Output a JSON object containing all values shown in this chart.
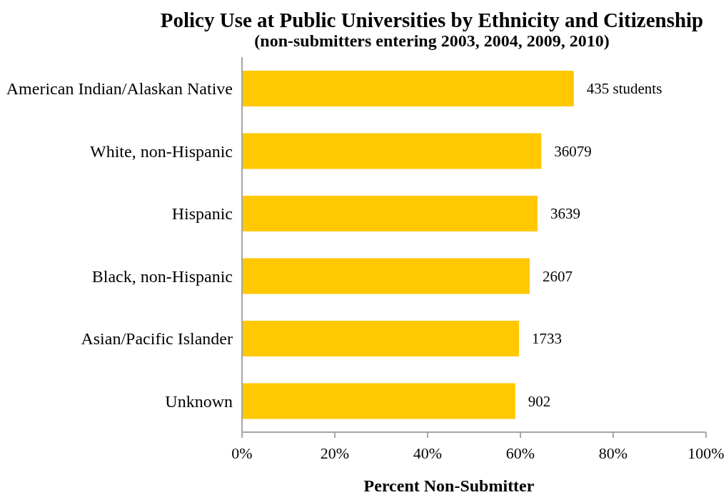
{
  "chart_data": {
    "type": "bar",
    "orientation": "horizontal",
    "title": "Policy Use at Public Universities by Ethnicity and Citizenship",
    "subtitle": "(non-submitters entering 2003, 2004, 2009, 2010)",
    "xlabel": "Percent Non-Submitter",
    "categories": [
      "American Indian/Alaskan Native",
      "White, non-Hispanic",
      "Hispanic",
      "Black, non-Hispanic",
      "Asian/Pacific Islander",
      "Unknown"
    ],
    "values": [
      71.5,
      64.5,
      63.7,
      62.0,
      59.7,
      58.9
    ],
    "annotations": [
      {
        "text": "435 students",
        "x": 71.5,
        "y": "American Indian/Alaskan Native"
      },
      {
        "text": "36079",
        "x": 64.5,
        "y": "White, non-Hispanic"
      },
      {
        "text": "3639",
        "x": 63.7,
        "y": "Hispanic"
      },
      {
        "text": "2607",
        "x": 62.0,
        "y": "Black, non-Hispanic"
      },
      {
        "text": "1733",
        "x": 59.7,
        "y": "Asian/Pacific Islander"
      },
      {
        "text": "902",
        "x": 58.9,
        "y": "Unknown"
      }
    ],
    "color": "#ffc800",
    "xlim": [
      0,
      100
    ],
    "xticks": [
      {
        "value": 0,
        "label": "0%"
      },
      {
        "value": 20,
        "label": "20%"
      },
      {
        "value": 40,
        "label": "40%"
      },
      {
        "value": 60,
        "label": "60%"
      },
      {
        "value": 80,
        "label": "80%"
      },
      {
        "value": 100,
        "label": "100%"
      }
    ]
  }
}
